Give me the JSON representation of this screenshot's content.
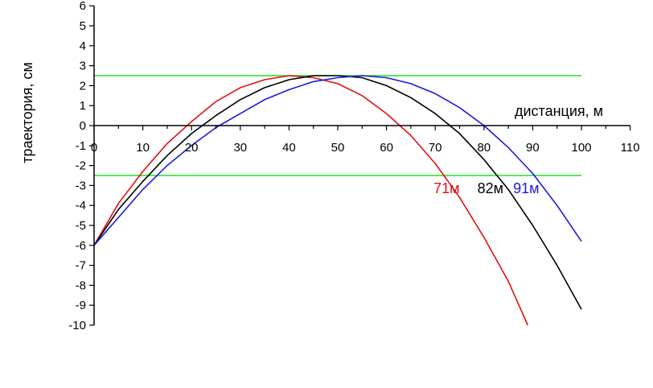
{
  "chart_data": {
    "type": "line",
    "title": "",
    "xlabel": "дистанция, м",
    "ylabel": "траектория, см",
    "xlim": [
      0,
      110
    ],
    "ylim": [
      -10,
      6
    ],
    "x_ticks": [
      0,
      10,
      20,
      30,
      40,
      50,
      60,
      70,
      80,
      90,
      100,
      110
    ],
    "y_ticks": [
      -10,
      -9,
      -8,
      -7,
      -6,
      -5,
      -4,
      -3,
      -2,
      -1,
      0,
      1,
      2,
      3,
      4,
      5,
      6
    ],
    "grid": false,
    "reference_lines": [
      {
        "y": 2.5,
        "x_range": [
          0,
          100
        ],
        "color": "#22dd22"
      },
      {
        "y": -2.5,
        "x_range": [
          0,
          100
        ],
        "color": "#22dd22"
      }
    ],
    "series": [
      {
        "name": "71м",
        "color": "#e01010",
        "x": [
          0,
          5,
          10,
          15,
          20,
          25,
          30,
          35,
          40,
          45,
          50,
          55,
          60,
          65,
          70,
          75,
          80,
          85,
          89
        ],
        "y": [
          -6.0,
          -3.9,
          -2.3,
          -0.9,
          0.2,
          1.2,
          1.9,
          2.3,
          2.5,
          2.4,
          2.1,
          1.5,
          0.6,
          -0.5,
          -1.9,
          -3.6,
          -5.6,
          -7.8,
          -10.0
        ]
      },
      {
        "name": "82м",
        "color": "#000000",
        "x": [
          0,
          5,
          10,
          15,
          20,
          25,
          30,
          35,
          40,
          45,
          50,
          55,
          60,
          65,
          70,
          75,
          80,
          85,
          90,
          95,
          100
        ],
        "y": [
          -6.0,
          -4.2,
          -2.8,
          -1.5,
          -0.4,
          0.5,
          1.3,
          1.9,
          2.3,
          2.5,
          2.5,
          2.4,
          2.0,
          1.4,
          0.6,
          -0.4,
          -1.7,
          -3.2,
          -5.0,
          -7.0,
          -9.2
        ]
      },
      {
        "name": "91м",
        "color": "#1a1ae0",
        "x": [
          0,
          5,
          10,
          15,
          20,
          25,
          30,
          35,
          40,
          45,
          50,
          55,
          60,
          65,
          70,
          75,
          80,
          85,
          90,
          95,
          100
        ],
        "y": [
          -6.0,
          -4.6,
          -3.2,
          -2.0,
          -1.0,
          -0.1,
          0.6,
          1.3,
          1.8,
          2.2,
          2.4,
          2.5,
          2.4,
          2.1,
          1.6,
          0.9,
          0.0,
          -1.1,
          -2.4,
          -4.0,
          -5.8
        ]
      }
    ]
  }
}
